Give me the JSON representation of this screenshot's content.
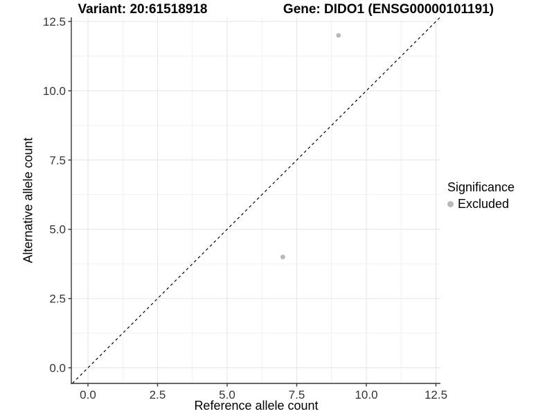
{
  "titles": {
    "left": "Variant: 20:61518918",
    "right": "Gene: DIDO1 (ENSG00000101191)"
  },
  "x_axis": {
    "label": "Reference allele count",
    "tick_labels": [
      "0.0",
      "2.5",
      "5.0",
      "7.5",
      "10.0",
      "12.5"
    ]
  },
  "y_axis": {
    "label": "Alternative allele count",
    "tick_labels": [
      "0.0",
      "2.5",
      "5.0",
      "7.5",
      "10.0",
      "12.5"
    ]
  },
  "legend": {
    "title": "Significance",
    "items": [
      {
        "label": "Excluded",
        "marker": "circle",
        "color": "#b9b9b9"
      }
    ]
  },
  "chart_data": {
    "type": "scatter",
    "title": "Variant: 20:61518918    Gene: DIDO1 (ENSG00000101191)",
    "xlabel": "Reference allele count",
    "ylabel": "Alternative allele count",
    "x_ticks": [
      0,
      2.5,
      5,
      7.5,
      10,
      12.5
    ],
    "y_ticks": [
      0,
      2.5,
      5,
      7.5,
      10,
      12.5
    ],
    "x_tick_labels": [
      "0.0",
      "2.5",
      "5.0",
      "7.5",
      "10.0",
      "12.5"
    ],
    "y_tick_labels": [
      "0.0",
      "2.5",
      "5.0",
      "7.5",
      "10.0",
      "12.5"
    ],
    "xlim": [
      -0.6,
      12.66
    ],
    "ylim": [
      -0.56,
      12.65
    ],
    "grid": {
      "major": true,
      "minor": true
    },
    "legend_position": "right",
    "series": [
      {
        "name": "Excluded",
        "marker": "circle",
        "color": "#b9b9b9",
        "points": [
          [
            7,
            4
          ],
          [
            9,
            12
          ]
        ]
      }
    ],
    "reference_line": {
      "kind": "identity",
      "style": "dashed",
      "color": "#000000"
    }
  },
  "colors": {
    "background": "#ffffff",
    "major_grid": "#e4e4e4",
    "minor_grid": "#f1f1f1",
    "axis_line": "#333333",
    "tick_mark": "#333333",
    "tick_text": "#333333",
    "point": "#b9b9b9",
    "reference_line": "#000000"
  }
}
